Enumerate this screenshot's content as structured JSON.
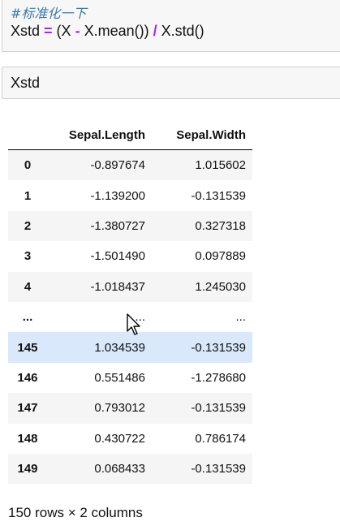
{
  "code_cell": {
    "comment": "#标准化一下",
    "line_prefix": "Xstd",
    "line_eq": " = ",
    "line_expr_1": "(X ",
    "line_minus": "-",
    "line_expr_2": " X.mean()) ",
    "line_div": "/",
    "line_expr_3": " X.std()"
  },
  "input_cell": {
    "text": "Xstd"
  },
  "table": {
    "columns": [
      "Sepal.Length",
      "Sepal.Width"
    ],
    "rows": [
      {
        "index": "0",
        "v1": "-0.897674",
        "v2": "1.015602"
      },
      {
        "index": "1",
        "v1": "-1.139200",
        "v2": "-0.131539"
      },
      {
        "index": "2",
        "v1": "-1.380727",
        "v2": "0.327318"
      },
      {
        "index": "3",
        "v1": "-1.501490",
        "v2": "0.097889"
      },
      {
        "index": "4",
        "v1": "-1.018437",
        "v2": "1.245030"
      },
      {
        "index": "...",
        "v1": "...",
        "v2": "..."
      },
      {
        "index": "145",
        "v1": "1.034539",
        "v2": "-0.131539"
      },
      {
        "index": "146",
        "v1": "0.551486",
        "v2": "-1.278680"
      },
      {
        "index": "147",
        "v1": "0.793012",
        "v2": "-0.131539"
      },
      {
        "index": "148",
        "v1": "0.430722",
        "v2": "0.786174"
      },
      {
        "index": "149",
        "v1": "0.068433",
        "v2": "-0.131539"
      }
    ],
    "hovered_row": "145"
  },
  "footer": {
    "row_count": "150 rows × 2 columns"
  },
  "colors": {
    "hover_row": "#d9e8fb",
    "comment": "#3b78a8",
    "operator": "#aa22ff"
  }
}
